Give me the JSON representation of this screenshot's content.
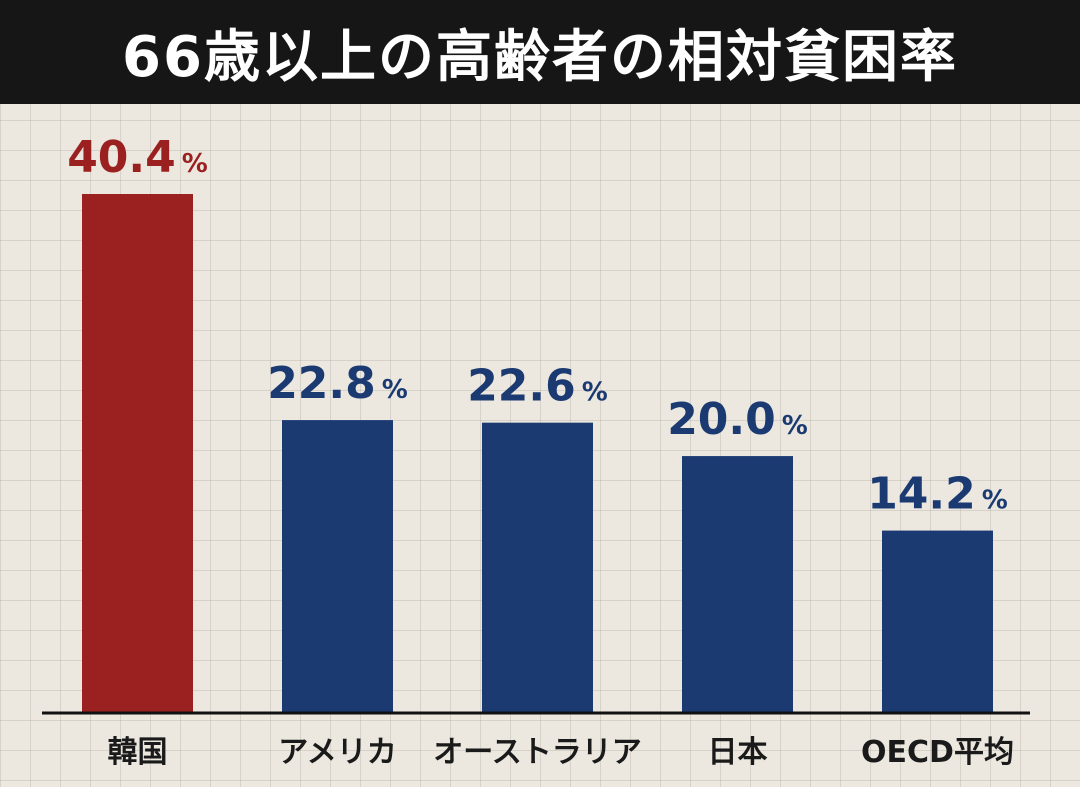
{
  "chart_data": {
    "type": "bar",
    "title": "66歳以上の高齢者の相対貧困率",
    "categories": [
      "韓国",
      "アメリカ",
      "オーストラリア",
      "日本",
      "OECD平均"
    ],
    "values": [
      40.4,
      22.8,
      22.6,
      20.0,
      14.2
    ],
    "value_labels": [
      "40.4",
      "22.8",
      "22.6",
      "20.0",
      "14.2"
    ],
    "unit": "%",
    "highlight_index": 0,
    "xlabel": "",
    "ylabel": "",
    "ylim": [
      0,
      42
    ]
  },
  "colors": {
    "highlight": "#9b2120",
    "default": "#1b3a72",
    "title_bg": "#161616",
    "title_text": "#ffffff",
    "baseline": "#111111"
  }
}
